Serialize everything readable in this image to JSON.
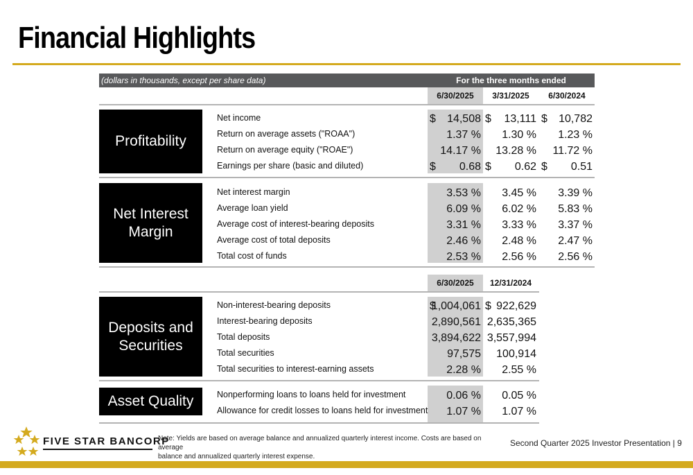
{
  "title": "Financial Highlights",
  "header": {
    "note": "(dollars in thousands, except per share data)",
    "span_label": "For the three months ended"
  },
  "columns_top": [
    "6/30/2025",
    "3/31/2025",
    "6/30/2024"
  ],
  "columns_bottom": [
    "6/30/2025",
    "12/31/2024"
  ],
  "sections": {
    "profitability": {
      "label_lines": [
        "Profitability"
      ],
      "rows": [
        {
          "label": "Net income",
          "cells": [
            {
              "cur": "$",
              "val": "14,508"
            },
            {
              "cur": "$",
              "val": "13,111"
            },
            {
              "cur": "$",
              "val": "10,782"
            }
          ]
        },
        {
          "label": "Return on average assets (\"ROAA\")",
          "cells": [
            {
              "cur": "",
              "val": "1.37 %"
            },
            {
              "cur": "",
              "val": "1.30 %"
            },
            {
              "cur": "",
              "val": "1.23 %"
            }
          ]
        },
        {
          "label": "Return on average equity (\"ROAE\")",
          "cells": [
            {
              "cur": "",
              "val": "14.17 %"
            },
            {
              "cur": "",
              "val": "13.28 %"
            },
            {
              "cur": "",
              "val": "11.72 %"
            }
          ]
        },
        {
          "label": "Earnings per share (basic and diluted)",
          "cells": [
            {
              "cur": "$",
              "val": "0.68"
            },
            {
              "cur": "$",
              "val": "0.62"
            },
            {
              "cur": "$",
              "val": "0.51"
            }
          ]
        }
      ]
    },
    "net_interest_margin": {
      "label_lines": [
        "Net Interest",
        "Margin"
      ],
      "rows": [
        {
          "label": "Net interest margin",
          "cells": [
            {
              "cur": "",
              "val": "3.53 %"
            },
            {
              "cur": "",
              "val": "3.45 %"
            },
            {
              "cur": "",
              "val": "3.39 %"
            }
          ]
        },
        {
          "label": "Average loan yield",
          "cells": [
            {
              "cur": "",
              "val": "6.09 %"
            },
            {
              "cur": "",
              "val": "6.02 %"
            },
            {
              "cur": "",
              "val": "5.83 %"
            }
          ]
        },
        {
          "label": "Average cost of interest-bearing deposits",
          "cells": [
            {
              "cur": "",
              "val": "3.31 %"
            },
            {
              "cur": "",
              "val": "3.33 %"
            },
            {
              "cur": "",
              "val": "3.37 %"
            }
          ]
        },
        {
          "label": "Average cost of total deposits",
          "cells": [
            {
              "cur": "",
              "val": "2.46 %"
            },
            {
              "cur": "",
              "val": "2.48 %"
            },
            {
              "cur": "",
              "val": "2.47 %"
            }
          ]
        },
        {
          "label": "Total cost of funds",
          "cells": [
            {
              "cur": "",
              "val": "2.53 %"
            },
            {
              "cur": "",
              "val": "2.56 %"
            },
            {
              "cur": "",
              "val": "2.56 %"
            }
          ]
        }
      ]
    },
    "deposits_securities": {
      "label_lines": [
        "Deposits and",
        "Securities"
      ],
      "rows": [
        {
          "label": "Non-interest-bearing deposits",
          "cells": [
            {
              "cur": "$",
              "val": "1,004,061"
            },
            {
              "cur": "$",
              "val": "922,629"
            }
          ]
        },
        {
          "label": "Interest-bearing deposits",
          "cells": [
            {
              "cur": "",
              "val": "2,890,561"
            },
            {
              "cur": "",
              "val": "2,635,365"
            }
          ]
        },
        {
          "label": "Total deposits",
          "cells": [
            {
              "cur": "",
              "val": "3,894,622"
            },
            {
              "cur": "",
              "val": "3,557,994"
            }
          ]
        },
        {
          "label": "Total securities",
          "cells": [
            {
              "cur": "",
              "val": "97,575"
            },
            {
              "cur": "",
              "val": "100,914"
            }
          ]
        },
        {
          "label": "Total securities to interest-earning assets",
          "cells": [
            {
              "cur": "",
              "val": "2.28 %"
            },
            {
              "cur": "",
              "val": "2.55 %"
            }
          ]
        }
      ]
    },
    "asset_quality": {
      "label_lines": [
        "Asset Quality"
      ],
      "rows": [
        {
          "label": "Nonperforming loans to loans held for investment",
          "cells": [
            {
              "cur": "",
              "val": "0.06 %"
            },
            {
              "cur": "",
              "val": "0.05 %"
            }
          ]
        },
        {
          "label": "Allowance for credit losses to loans held for investment",
          "cells": [
            {
              "cur": "",
              "val": "1.07 %"
            },
            {
              "cur": "",
              "val": "1.07 %"
            }
          ]
        }
      ]
    }
  },
  "footer": {
    "logo_text": "FIVE STAR BANCORP",
    "note_line1": "Note: Yields are based on average balance and annualized quarterly interest income. Costs are based on average",
    "note_line2": "balance and annualized quarterly interest expense.",
    "presentation": "Second Quarter 2025 Investor Presentation | 9"
  },
  "colors": {
    "accent_gold": "#d4aa1e",
    "header_gray": "#58595b",
    "shade_gray": "#d0d0d0",
    "block_black": "#000000"
  },
  "icons": [
    "five-star-logo-icon"
  ]
}
